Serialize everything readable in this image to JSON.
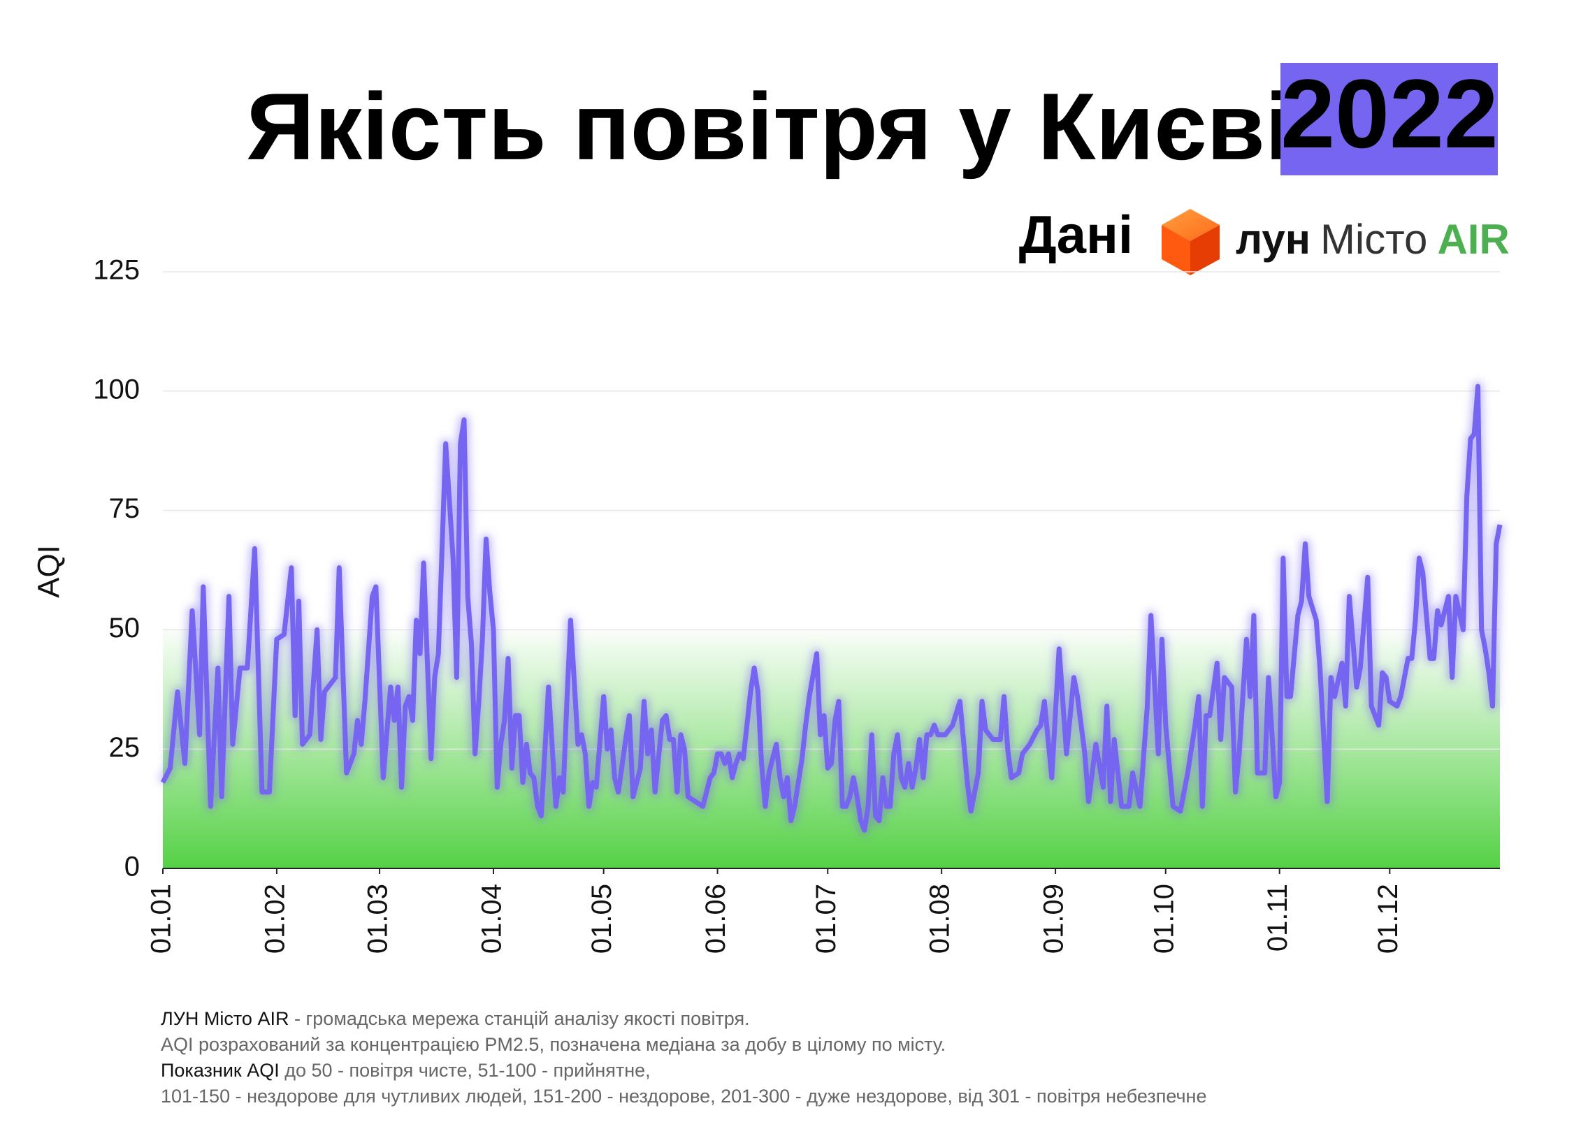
{
  "chart_data": {
    "type": "line",
    "title": "Якість повітря у Києві",
    "year": "2022",
    "ylabel": "AQI",
    "color": "#7565f0",
    "grid": true,
    "zone": {
      "to": 50,
      "color": "#4ccf3c"
    },
    "ylim": [
      0,
      125
    ],
    "yticks": [
      0,
      25,
      50,
      75,
      100,
      125
    ],
    "xticks": [
      "01.01",
      "01.02",
      "01.03",
      "01.04",
      "01.05",
      "01.06",
      "01.07",
      "01.08",
      "01.09",
      "01.10",
      "01.11",
      "01.12"
    ],
    "x": [
      "01.01",
      "03.01",
      "05.01",
      "07.01",
      "09.01",
      "11.01",
      "12.01",
      "14.01",
      "16.01",
      "17.01",
      "19.01",
      "20.01",
      "22.01",
      "24.01",
      "26.01",
      "28.01",
      "30.01",
      "01.02",
      "03.02",
      "05.02",
      "06.02",
      "07.02",
      "08.02",
      "10.02",
      "12.02",
      "13.02",
      "14.02",
      "17.02",
      "18.02",
      "20.02",
      "22.02",
      "23.02",
      "24.02",
      "25.02",
      "27.02",
      "28.02",
      "02.03",
      "04.03",
      "05.03",
      "06.03",
      "07.03",
      "08.03",
      "09.03",
      "10.03",
      "11.03",
      "12.03",
      "13.03",
      "15.03",
      "16.03",
      "17.03",
      "19.03",
      "21.03",
      "22.03",
      "23.03",
      "24.03",
      "25.03",
      "26.03",
      "27.03",
      "28.03",
      "29.03",
      "30.03",
      "31.03",
      "01.04",
      "02.04",
      "03.04",
      "04.04",
      "05.04",
      "06.04",
      "07.04",
      "08.04",
      "09.04",
      "10.04",
      "11.04",
      "12.04",
      "13.04",
      "14.04",
      "16.04",
      "18.04",
      "19.04",
      "20.04",
      "21.04",
      "22.04",
      "24.04",
      "25.04",
      "26.04",
      "27.04",
      "28.04",
      "29.04",
      "01.05",
      "02.05",
      "03.05",
      "04.05",
      "05.05",
      "07.05",
      "08.05",
      "09.05",
      "11.05",
      "12.05",
      "13.05",
      "14.05",
      "15.05",
      "17.05",
      "18.05",
      "19.05",
      "20.05",
      "21.05",
      "22.05",
      "23.05",
      "24.05",
      "26.05",
      "28.05",
      "30.05",
      "31.05",
      "01.06",
      "02.06",
      "03.06",
      "04.06",
      "05.06",
      "06.06",
      "07.06",
      "08.06",
      "10.06",
      "11.06",
      "12.06",
      "13.06",
      "14.06",
      "15.06",
      "16.06",
      "17.06",
      "18.06",
      "19.06",
      "20.06",
      "21.06",
      "22.06",
      "23.06",
      "24.06",
      "25.06",
      "26.06",
      "28.06",
      "29.06",
      "30.06",
      "01.07",
      "02.07",
      "03.07",
      "04.07",
      "05.07",
      "06.07",
      "07.07",
      "08.07",
      "09.07",
      "10.07",
      "11.07",
      "12.07",
      "13.07",
      "14.07",
      "15.07",
      "16.07",
      "17.07",
      "18.07",
      "19.07",
      "20.07",
      "21.07",
      "22.07",
      "23.07",
      "24.07",
      "25.07",
      "26.07",
      "27.07",
      "28.07",
      "29.07",
      "30.07",
      "31.07",
      "02.08",
      "04.08",
      "06.08",
      "08.08",
      "09.08",
      "11.08",
      "12.08",
      "13.08",
      "15.08",
      "17.08",
      "18.08",
      "19.08",
      "20.08",
      "22.08",
      "23.08",
      "25.08",
      "27.08",
      "28.08",
      "29.08",
      "31.08",
      "02.09",
      "04.09",
      "06.09",
      "07.09",
      "09.09",
      "10.09",
      "12.09",
      "14.09",
      "15.09",
      "16.09",
      "17.09",
      "19.09",
      "21.09",
      "22.09",
      "24.09",
      "26.09",
      "27.09",
      "29.09",
      "30.09",
      "01.10",
      "03.10",
      "05.10",
      "07.10",
      "09.10",
      "10.10",
      "11.10",
      "12.10",
      "13.10",
      "15.10",
      "16.10",
      "17.10",
      "19.10",
      "20.10",
      "21.10",
      "23.10",
      "24.10",
      "25.10",
      "26.10",
      "28.10",
      "29.10",
      "31.10",
      "01.11",
      "02.11",
      "03.11",
      "04.11",
      "06.11",
      "07.11",
      "08.11",
      "09.11",
      "11.11",
      "12.11",
      "14.11",
      "15.11",
      "16.11",
      "18.11",
      "19.11",
      "20.11",
      "22.11",
      "23.11",
      "25.11",
      "26.11",
      "28.11",
      "29.11",
      "30.11",
      "01.12",
      "03.12",
      "04.12",
      "06.12",
      "07.12",
      "08.12",
      "09.12",
      "10.12",
      "12.12",
      "13.12",
      "14.12",
      "15.12",
      "17.12",
      "18.12",
      "19.12",
      "21.12",
      "22.12",
      "23.12",
      "24.12",
      "25.12",
      "26.12",
      "27.12",
      "28.12",
      "29.12",
      "30.12",
      "31.12"
    ],
    "values": [
      18,
      21,
      37,
      22,
      54,
      28,
      59,
      13,
      42,
      15,
      57,
      26,
      42,
      42,
      67,
      16,
      16,
      48,
      49,
      63,
      32,
      56,
      26,
      28,
      50,
      27,
      37,
      40,
      63,
      20,
      24,
      31,
      26,
      35,
      57,
      59,
      19,
      38,
      31,
      38,
      17,
      34,
      36,
      31,
      52,
      45,
      64,
      23,
      40,
      45,
      89,
      65,
      40,
      89,
      94,
      57,
      47,
      24,
      35,
      48,
      69,
      58,
      50,
      17,
      26,
      31,
      44,
      21,
      32,
      32,
      18,
      26,
      20,
      19,
      13,
      11,
      38,
      13,
      19,
      16,
      35,
      52,
      26,
      28,
      24,
      13,
      18,
      17,
      36,
      25,
      29,
      19,
      16,
      27,
      32,
      15,
      21,
      35,
      24,
      29,
      16,
      31,
      32,
      27,
      27,
      16,
      28,
      25,
      15,
      14,
      13,
      19,
      20,
      24,
      24,
      22,
      24,
      19,
      22,
      24,
      23,
      37,
      42,
      37,
      22,
      13,
      20,
      23,
      26,
      19,
      15,
      19,
      10,
      13,
      18,
      23,
      30,
      36,
      45,
      28,
      32,
      21,
      22,
      31,
      35,
      13,
      13,
      15,
      19,
      15,
      10,
      8,
      13,
      28,
      11,
      10,
      19,
      13,
      13,
      24,
      28,
      19,
      17,
      22,
      17,
      21,
      27,
      19,
      28,
      28,
      30,
      28,
      28,
      30,
      35,
      18,
      12,
      20,
      35,
      29,
      27,
      27,
      36,
      25,
      19,
      20,
      24,
      26,
      29,
      30,
      35,
      19,
      46,
      24,
      40,
      36,
      24,
      14,
      26,
      17,
      34,
      14,
      27,
      13,
      13,
      20,
      13,
      34,
      53,
      24,
      48,
      30,
      13,
      12,
      20,
      30,
      36,
      13,
      32,
      32,
      43,
      27,
      40,
      38,
      16,
      24,
      48,
      36,
      53,
      20,
      20,
      40,
      15,
      18,
      65,
      36,
      36,
      53,
      56,
      68,
      57,
      52,
      42,
      14,
      40,
      36,
      43,
      34,
      57,
      38,
      42,
      61,
      34,
      30,
      41,
      40,
      35,
      34,
      36,
      44,
      44,
      52,
      65,
      62,
      44,
      44,
      54,
      51,
      57,
      40,
      57,
      50,
      78,
      90,
      91,
      101,
      50,
      46,
      41,
      34,
      68,
      72
    ]
  },
  "source": {
    "label": "Дані",
    "brand": "лун",
    "product": "Місто",
    "accent": "AIR"
  },
  "notes": [
    {
      "lead": "ЛУН Місто AIR",
      "text": " - громадська мережа станцій аналізу якості повітря."
    },
    {
      "text": "AQI розрахований за концентрацією PM2.5, позначена медіана за добу в цілому по місту."
    },
    {
      "lead": "Показник AQI",
      "text": " до 50 - повітря чисте, 51-100 - прийнятне,"
    },
    {
      "text": "101-150 - нездорове для чутливих людей, 151-200 - нездорове, 201-300 - дуже нездорове, від 301 - повітря небезпечне"
    }
  ]
}
